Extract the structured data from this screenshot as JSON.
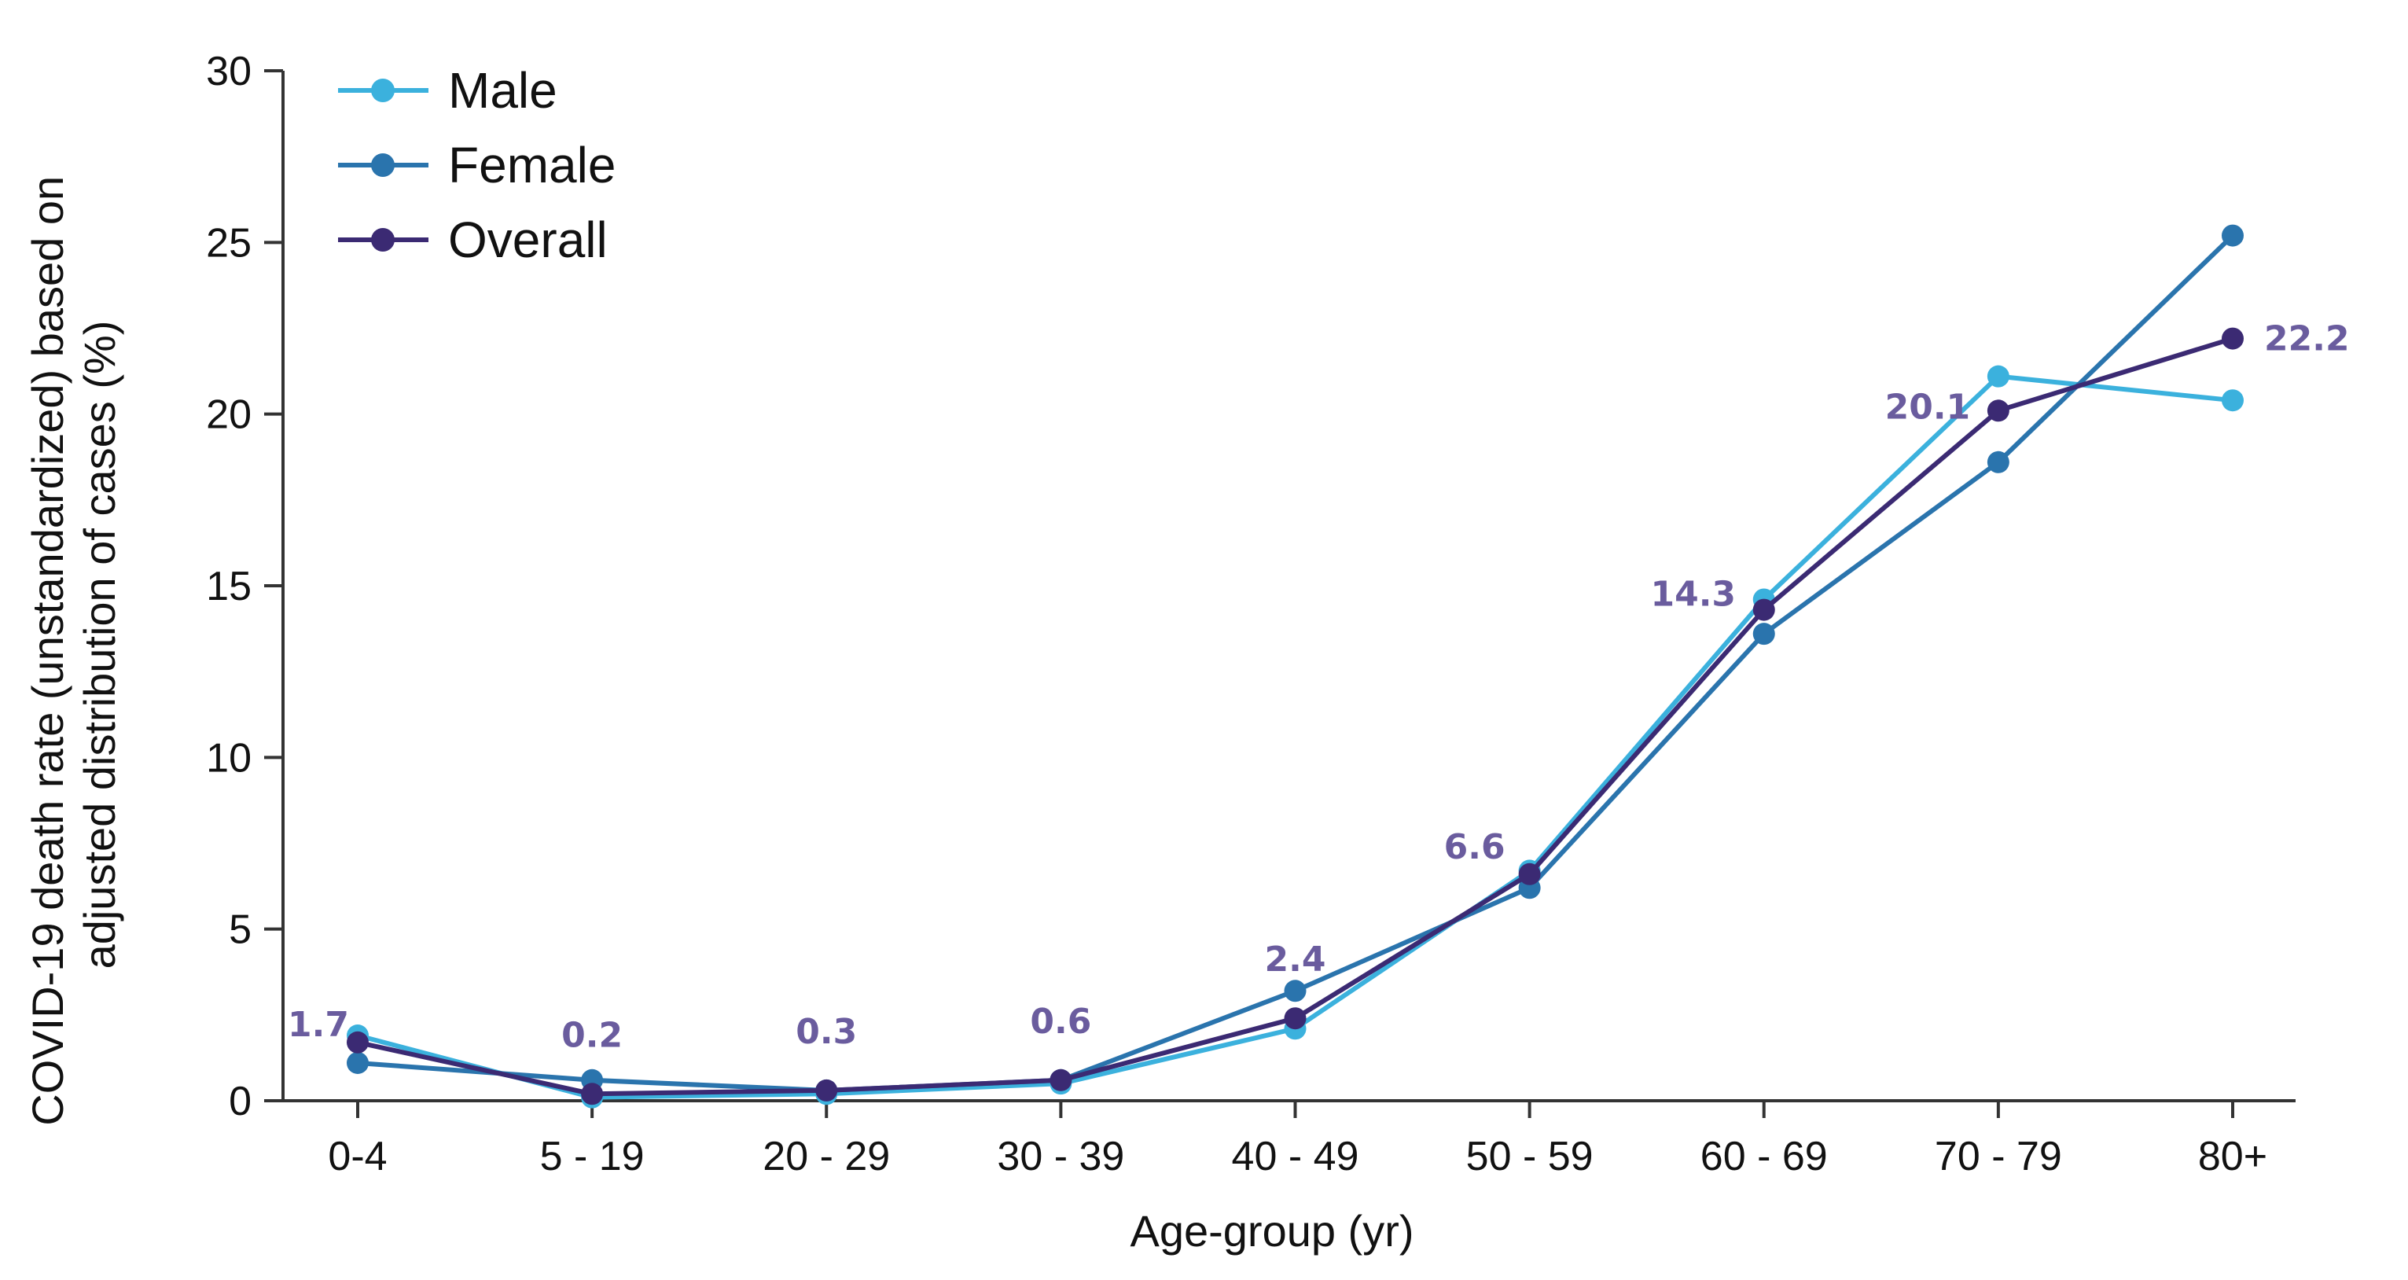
{
  "chart_data": {
    "type": "line",
    "title": "",
    "xlabel": "Age-group (yr)",
    "ylabel_lines": [
      "COVID-19 death rate (unstandardized) based on",
      "adjusted distribution of cases (%)"
    ],
    "categories": [
      "0-4",
      "5 - 19",
      "20 - 29",
      "30 - 39",
      "40 - 49",
      "50 - 59",
      "60 - 69",
      "70 - 79",
      "80+"
    ],
    "ylim": [
      0,
      30
    ],
    "yticks": [
      "0",
      "5",
      "10",
      "15",
      "20",
      "25",
      "30"
    ],
    "grid": false,
    "legend_position": "top-left",
    "series": [
      {
        "name": "Male",
        "color": "#3bb1dd",
        "values": [
          1.9,
          0.1,
          0.2,
          0.5,
          2.1,
          6.7,
          14.6,
          21.1,
          20.4
        ]
      },
      {
        "name": "Female",
        "color": "#2a74ad",
        "values": [
          1.1,
          0.6,
          0.3,
          0.6,
          3.2,
          6.2,
          13.6,
          18.6,
          25.2
        ]
      },
      {
        "name": "Overall",
        "color": "#3b2a73",
        "values": [
          1.7,
          0.2,
          0.3,
          0.6,
          2.4,
          6.6,
          14.3,
          20.1,
          22.2
        ]
      }
    ],
    "data_labels": [
      "1.7",
      "0.2",
      "0.3",
      "0.6",
      "2.4",
      "6.6",
      "14.3",
      "20.1",
      "22.2"
    ]
  }
}
